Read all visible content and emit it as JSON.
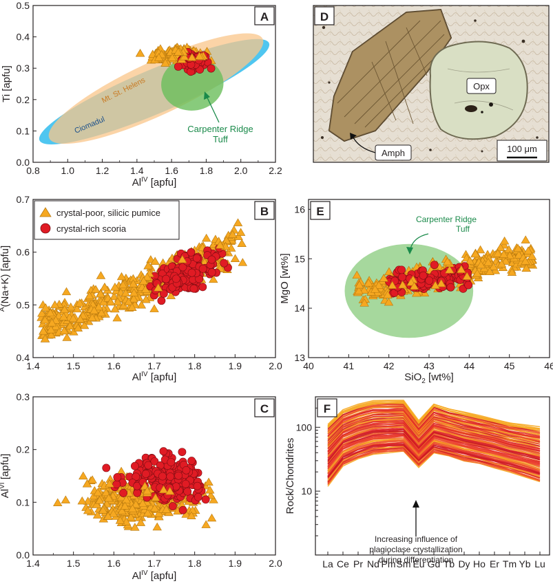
{
  "colors": {
    "pumice": "#f6a821",
    "pumice_stroke": "#b8790f",
    "scoria": "#e01b24",
    "scoria_stroke": "#7a0d12",
    "ciomadul": "#3cc0ee",
    "msh": "#f9c58a",
    "crt": "#6abe5b",
    "crt_text": "#1a8a4a",
    "msh_text": "#c97a22",
    "ciomadul_text": "#1b4f8a",
    "ree_band": "#e8342a",
    "ree_hi": "#f6a821"
  },
  "legend": {
    "pumice_label": "crystal-poor, silicic pumice",
    "scoria_label": "crystal-rich scoria"
  },
  "photo": {
    "panel_label": "D",
    "amph_label": "Amph",
    "opx_label": "Opx",
    "scale_label": "100 μm"
  },
  "chart_data": [
    {
      "id": "A",
      "type": "scatter",
      "panel_label": "A",
      "xlabel_main": "Al",
      "xlabel_sup": "IV",
      "xlabel_unit": " [apfu]",
      "ylabel": "Ti [apfu]",
      "xlim": [
        0.8,
        2.2
      ],
      "ylim": [
        0.0,
        0.5
      ],
      "xticks": [
        "0.8",
        "1.0",
        "1.2",
        "1.4",
        "1.6",
        "1.8",
        "2.0",
        "2.2"
      ],
      "yticks": [
        "0.0",
        "0.1",
        "0.2",
        "0.3",
        "0.4",
        "0.5"
      ],
      "fields": [
        {
          "name": "Ciomadul",
          "cx": 1.5,
          "cy": 0.225,
          "rx": 0.72,
          "ry": 0.07,
          "angle_deg": -23
        },
        {
          "name": "Mt. St. Helens",
          "cx": 1.51,
          "cy": 0.235,
          "rx": 0.68,
          "ry": 0.085,
          "angle_deg": -25
        },
        {
          "name": "Carpenter Ridge Tuff",
          "cx": 1.72,
          "cy": 0.25,
          "rx": 0.18,
          "ry": 0.085,
          "angle_deg": -5
        }
      ],
      "annotation": [
        "Carpenter Ridge",
        "Tuff"
      ],
      "series": [
        {
          "name": "crystal-poor, silicic pumice",
          "marker": "triangle",
          "x_range": [
            1.38,
            1.9
          ],
          "y_range": [
            0.3,
            0.38
          ],
          "n": 150
        },
        {
          "name": "crystal-rich scoria",
          "marker": "circle",
          "x_range": [
            1.58,
            1.88
          ],
          "y_range": [
            0.27,
            0.37
          ],
          "n": 90
        }
      ]
    },
    {
      "id": "B",
      "type": "scatter",
      "panel_label": "B",
      "xlabel_main": "Al",
      "xlabel_sup": "IV",
      "xlabel_unit": " [apfu]",
      "ylabel_pre": "A",
      "ylabel": "(Na+K) [apfu]",
      "xlim": [
        1.4,
        2.0
      ],
      "ylim": [
        0.4,
        0.7
      ],
      "xticks": [
        "1.4",
        "1.5",
        "1.6",
        "1.7",
        "1.8",
        "1.9",
        "2.0"
      ],
      "yticks": [
        "0.4",
        "0.5",
        "0.6",
        "0.7"
      ],
      "series": [
        {
          "name": "crystal-poor, silicic pumice",
          "marker": "triangle",
          "trend": {
            "x0": 1.42,
            "x1": 1.92,
            "y_at_x0": 0.455,
            "y_at_x1": 0.615
          },
          "spread": 0.035,
          "n": 420
        },
        {
          "name": "crystal-rich scoria",
          "marker": "circle",
          "trend": {
            "x0": 1.52,
            "x1": 1.92,
            "y_at_x0": 0.49,
            "y_at_x1": 0.6
          },
          "spread": 0.03,
          "x_center": 1.78,
          "n": 170
        }
      ]
    },
    {
      "id": "C",
      "type": "scatter",
      "panel_label": "C",
      "xlabel_main": "Al",
      "xlabel_sup": "IV",
      "xlabel_unit": " [apfu]",
      "ylabel_main": "Al",
      "ylabel_sup": "VI",
      "ylabel_unit": " [apfu]",
      "xlim": [
        1.4,
        2.0
      ],
      "ylim": [
        0.0,
        0.3
      ],
      "xticks": [
        "1.4",
        "1.5",
        "1.6",
        "1.7",
        "1.8",
        "1.9",
        "2.0"
      ],
      "yticks": [
        "0.0",
        "0.1",
        "0.2",
        "0.3"
      ],
      "series": [
        {
          "name": "crystal-poor, silicic pumice",
          "marker": "triangle",
          "x_range": [
            1.42,
            1.92
          ],
          "y_range": [
            0.03,
            0.18
          ],
          "n": 380
        },
        {
          "name": "crystal-rich scoria",
          "marker": "circle",
          "x_range": [
            1.55,
            1.9
          ],
          "y_range": [
            0.06,
            0.23
          ],
          "n": 190
        }
      ]
    },
    {
      "id": "E",
      "type": "scatter",
      "panel_label": "E",
      "xlabel_main": "SiO",
      "xlabel_sub": "2",
      "xlabel_unit": " [wt%]",
      "ylabel": "MgO [wt%]",
      "xlim": [
        40,
        46
      ],
      "ylim": [
        13,
        16.2
      ],
      "xticks": [
        "40",
        "41",
        "42",
        "43",
        "44",
        "45",
        "46"
      ],
      "yticks": [
        "13",
        "14",
        "15",
        "16"
      ],
      "fields": [
        {
          "name": "Carpenter Ridge Tuff",
          "cx": 42.5,
          "cy": 14.35,
          "rx": 1.6,
          "ry": 0.95,
          "angle_deg": 0
        }
      ],
      "annotation": [
        "Carpenter Ridge",
        "Tuff"
      ],
      "series": [
        {
          "name": "crystal-poor, silicic pumice",
          "marker": "triangle",
          "trend": {
            "x0": 41.2,
            "x1": 45.6,
            "y_at_x0": 14.3,
            "y_at_x1": 15.1
          },
          "spread": 0.28,
          "n": 330
        },
        {
          "name": "crystal-rich scoria",
          "marker": "circle",
          "trend": {
            "x0": 42.0,
            "x1": 44.0,
            "y_at_x0": 14.5,
            "y_at_x1": 14.6
          },
          "spread": 0.22,
          "n": 110
        }
      ]
    },
    {
      "id": "F",
      "type": "line",
      "panel_label": "F",
      "ylabel": "Rock/Chondrites",
      "yscale": "log",
      "ylim": [
        1,
        300
      ],
      "yticks": [
        "10",
        "100"
      ],
      "categories": [
        "La",
        "Ce",
        "Pr",
        "Nd",
        "Pm",
        "Sm",
        "Eu",
        "Gd",
        "Tb",
        "Dy",
        "Ho",
        "Er",
        "Tm",
        "Yb",
        "Lu"
      ],
      "upper_envelope": [
        110,
        185,
        225,
        260,
        262,
        262,
        125,
        232,
        195,
        172,
        152,
        135,
        118,
        108,
        100
      ],
      "lower_envelope": [
        12,
        25,
        32,
        38,
        40,
        42,
        24,
        40,
        35,
        30,
        27,
        23,
        20,
        17,
        14
      ],
      "n_lines": 70,
      "annotation": [
        "Increasing influence of",
        "plagioclase crystallization",
        "during differentiation"
      ]
    }
  ]
}
